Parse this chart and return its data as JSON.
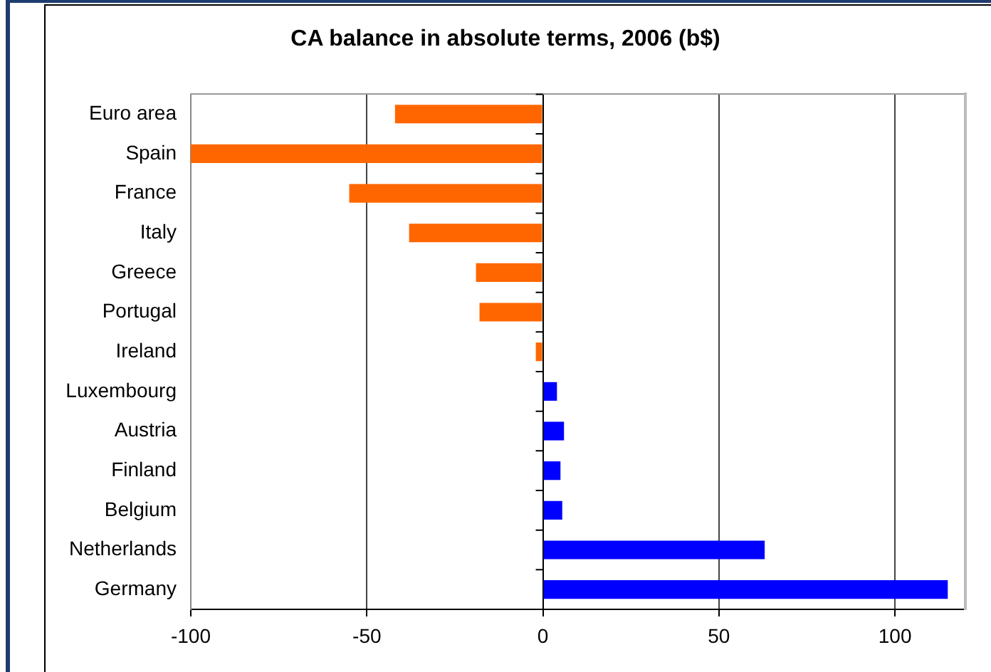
{
  "chart_data": {
    "type": "bar",
    "title": "CA balance in absolute terms, 2006 (b$)",
    "orientation": "horizontal",
    "categories": [
      "Euro area",
      "Spain",
      "France",
      "Italy",
      "Greece",
      "Portugal",
      "Ireland",
      "Luxembourg",
      "Austria",
      "Finland",
      "Belgium",
      "Netherlands",
      "Germany"
    ],
    "values": [
      -42,
      -100,
      -55,
      -38,
      -19,
      -18,
      -2,
      4,
      6,
      5,
      5.5,
      63,
      115
    ],
    "colors": [
      "#ff6600",
      "#ff6600",
      "#ff6600",
      "#ff6600",
      "#ff6600",
      "#ff6600",
      "#ff6600",
      "#0000ff",
      "#0000ff",
      "#0000ff",
      "#0000ff",
      "#0000ff",
      "#0000ff"
    ],
    "xlim": [
      -100,
      120
    ],
    "xticks": [
      -100,
      -50,
      0,
      50,
      100
    ],
    "grid": "x"
  }
}
